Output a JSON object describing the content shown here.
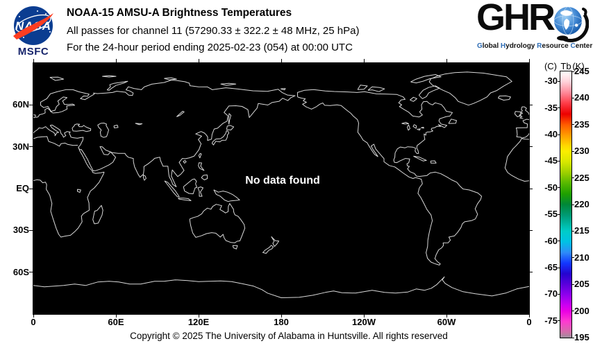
{
  "header": {
    "title": "NOAA-15 AMSU-A Brightness Temperatures",
    "line2": "All passes for channel 11 (57290.33 ± 322.2 ± 48 MHz, 25 hPa)",
    "line3": "For the 24-hour period ending 2025-02-23 (054) at 00:00 UTC",
    "nasa": {
      "wordmark": "NASA",
      "caption": "MSFC"
    },
    "ghrc": {
      "acronym": "GHR",
      "subtitle_words": [
        [
          "G",
          "lobal"
        ],
        [
          "H",
          "ydrology"
        ],
        [
          "R",
          "esource"
        ],
        [
          "C",
          "enter"
        ]
      ],
      "accent_color": "#2f6db5",
      "letter_color": "#111111"
    }
  },
  "map": {
    "no_data_message": "No data found",
    "background": "#000000",
    "coastline_color": "#d9d9d9",
    "lat_ticks": [
      {
        "label": "60N",
        "lat": 60
      },
      {
        "label": "30N",
        "lat": 30
      },
      {
        "label": "EQ",
        "lat": 0
      },
      {
        "label": "30S",
        "lat": -30
      },
      {
        "label": "60S",
        "lat": -60
      }
    ],
    "lon_ticks": [
      {
        "label": "0",
        "lon": 0
      },
      {
        "label": "60E",
        "lon": 60
      },
      {
        "label": "120E",
        "lon": 120
      },
      {
        "label": "180",
        "lon": 180
      },
      {
        "label": "120W",
        "lon": 240
      },
      {
        "label": "60W",
        "lon": 300
      },
      {
        "label": "0",
        "lon": 360
      }
    ]
  },
  "colorbar": {
    "unit_left": "(C)",
    "quantity": "Tb",
    "unit_right": "(K)",
    "kelvin_max": 245,
    "kelvin_min": 195,
    "kelvin_ticks": [
      245,
      240,
      235,
      230,
      225,
      220,
      215,
      210,
      205,
      200,
      195
    ],
    "celsius_ticks": [
      -30,
      -35,
      -40,
      -45,
      -50,
      -55,
      -60,
      -65,
      -70,
      -75
    ],
    "gradient_stops": [
      [
        0,
        "#ffffff"
      ],
      [
        4,
        "#ffd0d8"
      ],
      [
        8,
        "#ff8898"
      ],
      [
        12,
        "#ff3b47"
      ],
      [
        16,
        "#ec0000"
      ],
      [
        20,
        "#ff5a00"
      ],
      [
        24,
        "#ff9c00"
      ],
      [
        28,
        "#ffd800"
      ],
      [
        30,
        "#fbee00"
      ],
      [
        34,
        "#d8e800"
      ],
      [
        38,
        "#9ed000"
      ],
      [
        42,
        "#56b800"
      ],
      [
        46,
        "#1fa000"
      ],
      [
        50,
        "#008738"
      ],
      [
        54,
        "#009a74"
      ],
      [
        58,
        "#00bcac"
      ],
      [
        60,
        "#00ccc8"
      ],
      [
        64,
        "#00c2e4"
      ],
      [
        68,
        "#2e8cf8"
      ],
      [
        72,
        "#1238ff"
      ],
      [
        76,
        "#2404cf"
      ],
      [
        80,
        "#5a00dc"
      ],
      [
        84,
        "#9100ee"
      ],
      [
        88,
        "#cf00f2"
      ],
      [
        90,
        "#ea00e4"
      ],
      [
        94,
        "#ff3bd0"
      ],
      [
        98,
        "#d070a8"
      ],
      [
        100,
        "#9c8f9c"
      ]
    ]
  },
  "footer": {
    "copyright": "Copyright © 2025 The University of Alabama in Huntsville.  All rights reserved"
  }
}
